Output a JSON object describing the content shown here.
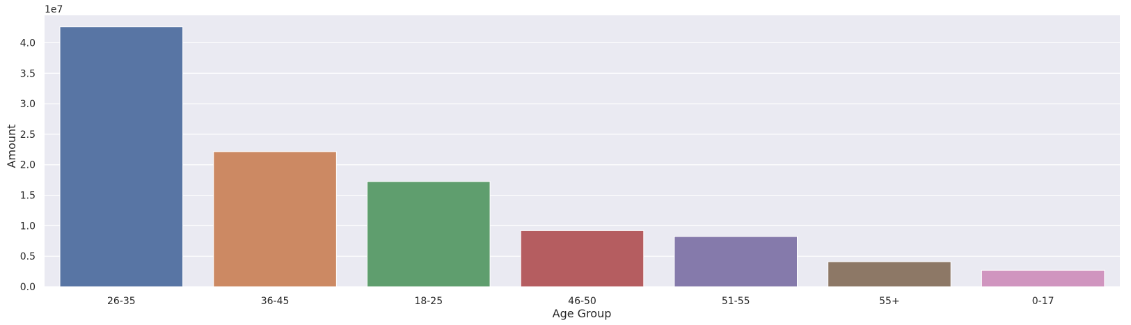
{
  "chart_data": {
    "type": "bar",
    "title": "",
    "xlabel": "Age Group",
    "ylabel": "Amount",
    "y_offset_label": "1e7",
    "y_scale": 10000000,
    "ylim": [
      0,
      44500000
    ],
    "yticks": [
      0,
      5000000,
      10000000,
      15000000,
      20000000,
      25000000,
      30000000,
      35000000,
      40000000
    ],
    "ytick_labels": [
      "0.0",
      "0.5",
      "1.0",
      "1.5",
      "2.0",
      "2.5",
      "3.0",
      "3.5",
      "4.0"
    ],
    "grid": true,
    "categories": [
      "26-35",
      "36-45",
      "18-25",
      "46-50",
      "51-55",
      "55+",
      "0-17"
    ],
    "values": [
      42600000,
      22150000,
      17250000,
      9200000,
      8250000,
      4100000,
      2700000
    ],
    "colors": [
      "#5875a4",
      "#cc8963",
      "#5f9e6e",
      "#b55d60",
      "#857aab",
      "#8d7866",
      "#d095bf"
    ],
    "background_color": "#eaeaf2",
    "grid_color": "#ffffff"
  }
}
